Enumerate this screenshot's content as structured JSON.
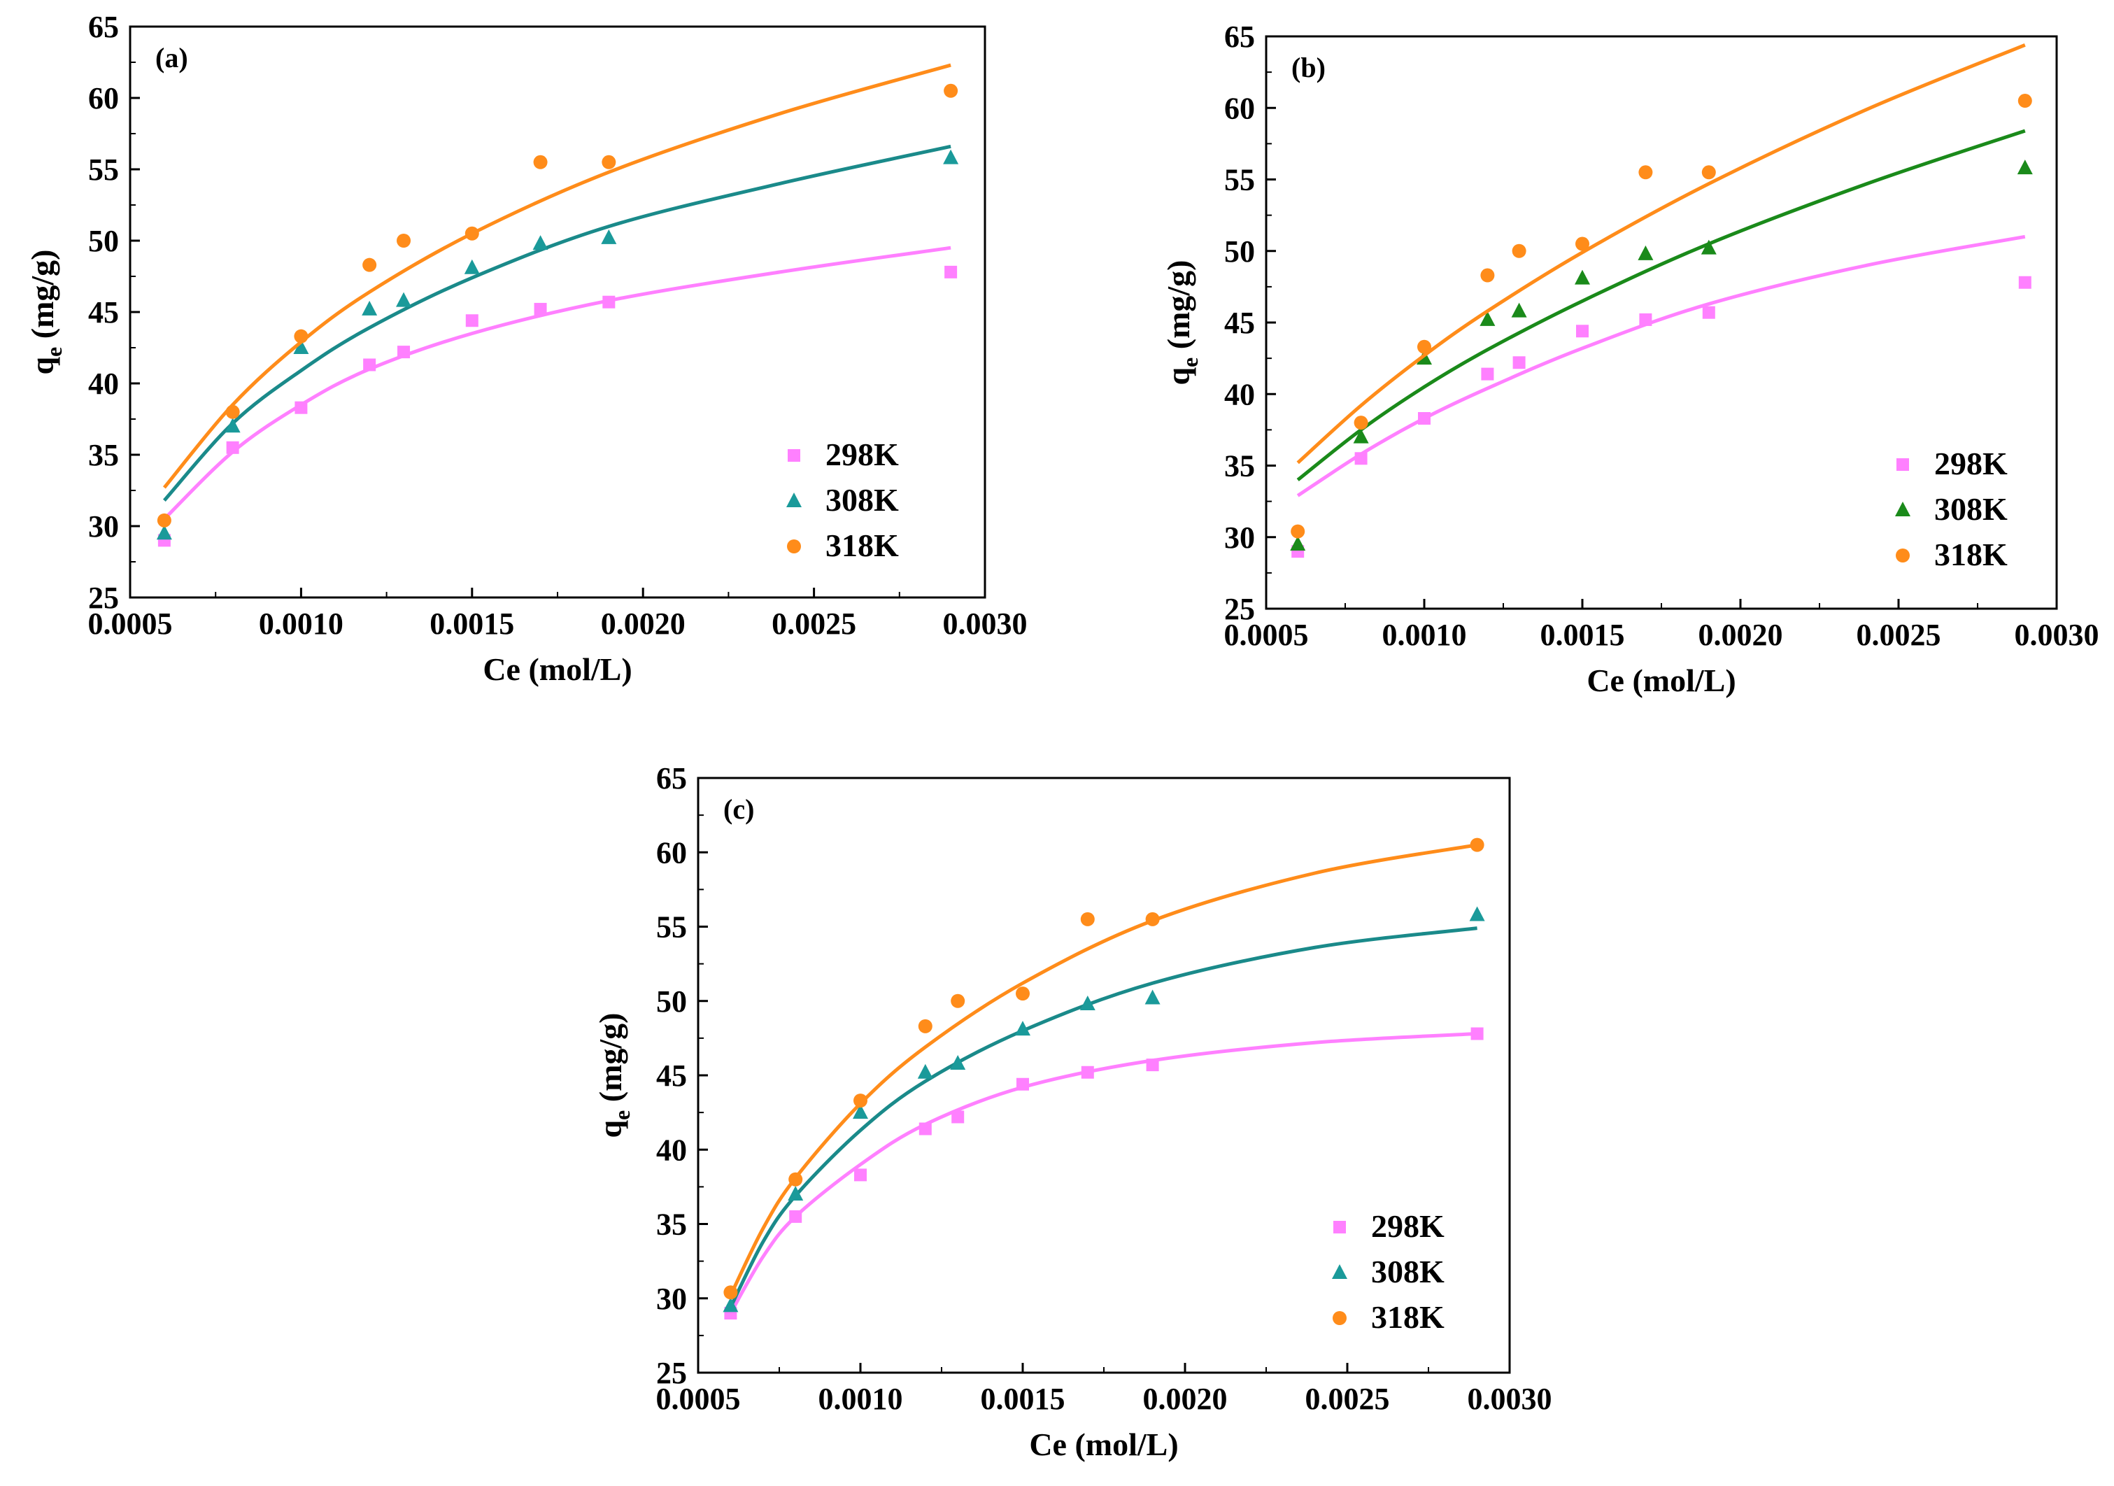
{
  "figure": {
    "x_categories": [
      0.0006,
      0.0008,
      0.001,
      0.0012,
      0.0013,
      0.0015,
      0.0017,
      0.0019,
      0.0029
    ],
    "marker_colors": {
      "298K": "#ff80ff",
      "308K": "#1a9a9a",
      "318K": "#ff8c1a"
    }
  },
  "chart_data": [
    {
      "type": "scatter",
      "panel_label": "(a)",
      "xlabel": "Ce (mol/L)",
      "ylabel": "q_e (mg/g)",
      "xlim": [
        0.0005,
        0.003
      ],
      "ylim": [
        25,
        65
      ],
      "x_tick_labels": [
        "0.0005",
        "0.0010",
        "0.0015",
        "0.0020",
        "0.0025",
        "0.0030"
      ],
      "y_tick_labels": [
        "25",
        "30",
        "35",
        "40",
        "45",
        "50",
        "55",
        "60",
        "65"
      ],
      "x_ticks": [
        0.0005,
        0.001,
        0.0015,
        0.002,
        0.0025,
        0.003
      ],
      "y_ticks": [
        25,
        30,
        35,
        40,
        45,
        50,
        55,
        60,
        65
      ],
      "legend_position": "bottom-right",
      "series": [
        {
          "name": "298K",
          "marker": "square",
          "color": "#ff80ff",
          "line_color": "#ff80ff",
          "x": [
            0.0006,
            0.0008,
            0.001,
            0.0012,
            0.0013,
            0.0015,
            0.0017,
            0.0019,
            0.0029
          ],
          "values": [
            29.0,
            35.5,
            38.3,
            41.3,
            42.2,
            44.4,
            45.2,
            45.7,
            47.8
          ],
          "fit": {
            "x": [
              0.0006,
              0.0008,
              0.001,
              0.0012,
              0.0015,
              0.0019,
              0.0024,
              0.0029
            ],
            "y": [
              30.5,
              35.2,
              38.5,
              41.0,
              43.5,
              45.8,
              47.8,
              49.5
            ]
          }
        },
        {
          "name": "308K",
          "marker": "triangle",
          "color": "#1a9a9a",
          "line_color": "#1a8a8a",
          "x": [
            0.0006,
            0.0008,
            0.001,
            0.0012,
            0.0013,
            0.0015,
            0.0017,
            0.0019,
            0.0029
          ],
          "values": [
            29.5,
            37.0,
            42.5,
            45.2,
            45.8,
            48.1,
            49.8,
            50.2,
            55.8
          ],
          "fit": {
            "x": [
              0.0006,
              0.0008,
              0.001,
              0.0012,
              0.0015,
              0.0019,
              0.0024,
              0.0029
            ],
            "y": [
              31.8,
              37.2,
              40.9,
              43.9,
              47.4,
              51.0,
              54.0,
              56.6
            ]
          }
        },
        {
          "name": "318K",
          "marker": "circle",
          "color": "#ff8c1a",
          "line_color": "#ff8c1a",
          "x": [
            0.0006,
            0.0008,
            0.001,
            0.0012,
            0.0013,
            0.0015,
            0.0017,
            0.0019,
            0.0029
          ],
          "values": [
            30.4,
            38.0,
            43.3,
            48.3,
            50.0,
            50.5,
            55.5,
            55.5,
            60.5
          ],
          "fit": {
            "x": [
              0.0006,
              0.0008,
              0.001,
              0.0012,
              0.0015,
              0.0019,
              0.0024,
              0.0029
            ],
            "y": [
              32.7,
              38.5,
              42.9,
              46.4,
              50.5,
              54.8,
              58.9,
              62.3
            ]
          }
        }
      ]
    },
    {
      "type": "scatter",
      "panel_label": "(b)",
      "xlabel": "Ce (mol/L)",
      "ylabel": "q_e (mg/g)",
      "xlim": [
        0.0005,
        0.003
      ],
      "ylim": [
        25,
        65
      ],
      "x_tick_labels": [
        "0.0005",
        "0.0010",
        "0.0015",
        "0.0020",
        "0.0025",
        "0.0030"
      ],
      "y_tick_labels": [
        "25",
        "30",
        "35",
        "40",
        "45",
        "50",
        "55",
        "60",
        "65"
      ],
      "x_ticks": [
        0.0005,
        0.001,
        0.0015,
        0.002,
        0.0025,
        0.003
      ],
      "y_ticks": [
        25,
        30,
        35,
        40,
        45,
        50,
        55,
        60,
        65
      ],
      "legend_position": "bottom-right",
      "series": [
        {
          "name": "298K",
          "marker": "square",
          "color": "#ff80ff",
          "line_color": "#ff80ff",
          "x": [
            0.0006,
            0.0008,
            0.001,
            0.0012,
            0.0013,
            0.0015,
            0.0017,
            0.0019,
            0.0029
          ],
          "values": [
            29.0,
            35.5,
            38.3,
            41.4,
            42.2,
            44.4,
            45.2,
            45.7,
            47.8
          ],
          "fit": {
            "x": [
              0.0006,
              0.0008,
              0.001,
              0.0012,
              0.0015,
              0.0019,
              0.0024,
              0.0029
            ],
            "y": [
              32.9,
              35.8,
              38.3,
              40.4,
              43.2,
              46.3,
              49.0,
              51.0
            ]
          }
        },
        {
          "name": "308K",
          "marker": "triangle",
          "color": "#1a8a1a",
          "line_color": "#1a8a1a",
          "x": [
            0.0006,
            0.0008,
            0.001,
            0.0012,
            0.0013,
            0.0015,
            0.0017,
            0.0019,
            0.0029
          ],
          "values": [
            29.5,
            37.0,
            42.5,
            45.2,
            45.8,
            48.1,
            49.8,
            50.2,
            55.8
          ],
          "fit": {
            "x": [
              0.0006,
              0.0008,
              0.001,
              0.0012,
              0.0015,
              0.0019,
              0.0024,
              0.0029
            ],
            "y": [
              34.0,
              37.5,
              40.5,
              43.1,
              46.5,
              50.5,
              54.7,
              58.4
            ]
          }
        },
        {
          "name": "318K",
          "marker": "circle",
          "color": "#ff8c1a",
          "line_color": "#ff8c1a",
          "x": [
            0.0006,
            0.0008,
            0.001,
            0.0012,
            0.0013,
            0.0015,
            0.0017,
            0.0019,
            0.0029
          ],
          "values": [
            30.4,
            38.0,
            43.3,
            48.3,
            50.0,
            50.5,
            55.5,
            55.5,
            60.5
          ],
          "fit": {
            "x": [
              0.0006,
              0.0008,
              0.001,
              0.0012,
              0.0015,
              0.0019,
              0.0024,
              0.0029
            ],
            "y": [
              35.2,
              39.2,
              42.7,
              45.8,
              49.9,
              54.7,
              59.9,
              64.4
            ]
          }
        }
      ]
    },
    {
      "type": "scatter",
      "panel_label": "(c)",
      "xlabel": "Ce (mol/L)",
      "ylabel": "q_e (mg/g)",
      "xlim": [
        0.0005,
        0.003
      ],
      "ylim": [
        25,
        65
      ],
      "x_tick_labels": [
        "0.0005",
        "0.0010",
        "0.0015",
        "0.0020",
        "0.0025",
        "0.0030"
      ],
      "y_tick_labels": [
        "25",
        "30",
        "35",
        "40",
        "45",
        "50",
        "55",
        "60",
        "65"
      ],
      "x_ticks": [
        0.0005,
        0.001,
        0.0015,
        0.002,
        0.0025,
        0.003
      ],
      "y_ticks": [
        25,
        30,
        35,
        40,
        45,
        50,
        55,
        60,
        65
      ],
      "legend_position": "bottom-right",
      "series": [
        {
          "name": "298K",
          "marker": "square",
          "color": "#ff80ff",
          "line_color": "#ff80ff",
          "x": [
            0.0006,
            0.0008,
            0.001,
            0.0012,
            0.0013,
            0.0015,
            0.0017,
            0.0019,
            0.0029
          ],
          "values": [
            29.0,
            35.5,
            38.3,
            41.4,
            42.2,
            44.4,
            45.2,
            45.7,
            47.8
          ],
          "fit": {
            "x": [
              0.0006,
              0.0007,
              0.0008,
              0.001,
              0.0012,
              0.0015,
              0.0019,
              0.0024,
              0.0029
            ],
            "y": [
              29.0,
              32.8,
              35.5,
              39.0,
              41.7,
              44.2,
              46.0,
              47.2,
              47.8
            ]
          }
        },
        {
          "name": "308K",
          "marker": "triangle",
          "color": "#1a9a9a",
          "line_color": "#1a8a8a",
          "x": [
            0.0006,
            0.0008,
            0.001,
            0.0012,
            0.0013,
            0.0015,
            0.0017,
            0.0019,
            0.0029
          ],
          "values": [
            29.5,
            37.0,
            42.5,
            45.2,
            45.8,
            48.1,
            49.8,
            50.2,
            55.8
          ],
          "fit": {
            "x": [
              0.0006,
              0.0007,
              0.0008,
              0.001,
              0.0012,
              0.0015,
              0.0019,
              0.0024,
              0.0029
            ],
            "y": [
              29.4,
              33.8,
              36.9,
              41.3,
              44.6,
              48.0,
              51.2,
              53.6,
              54.9
            ]
          }
        },
        {
          "name": "318K",
          "marker": "circle",
          "color": "#ff8c1a",
          "line_color": "#ff8c1a",
          "x": [
            0.0006,
            0.0008,
            0.001,
            0.0012,
            0.0013,
            0.0015,
            0.0017,
            0.0019,
            0.0029
          ],
          "values": [
            30.4,
            38.0,
            43.3,
            48.3,
            50.0,
            50.5,
            55.5,
            55.5,
            60.5
          ],
          "fit": {
            "x": [
              0.0006,
              0.0007,
              0.0008,
              0.001,
              0.0012,
              0.0015,
              0.0019,
              0.0024,
              0.0029
            ],
            "y": [
              30.2,
              34.7,
              38.1,
              43.1,
              46.9,
              51.2,
              55.4,
              58.6,
              60.5
            ]
          }
        }
      ]
    }
  ]
}
